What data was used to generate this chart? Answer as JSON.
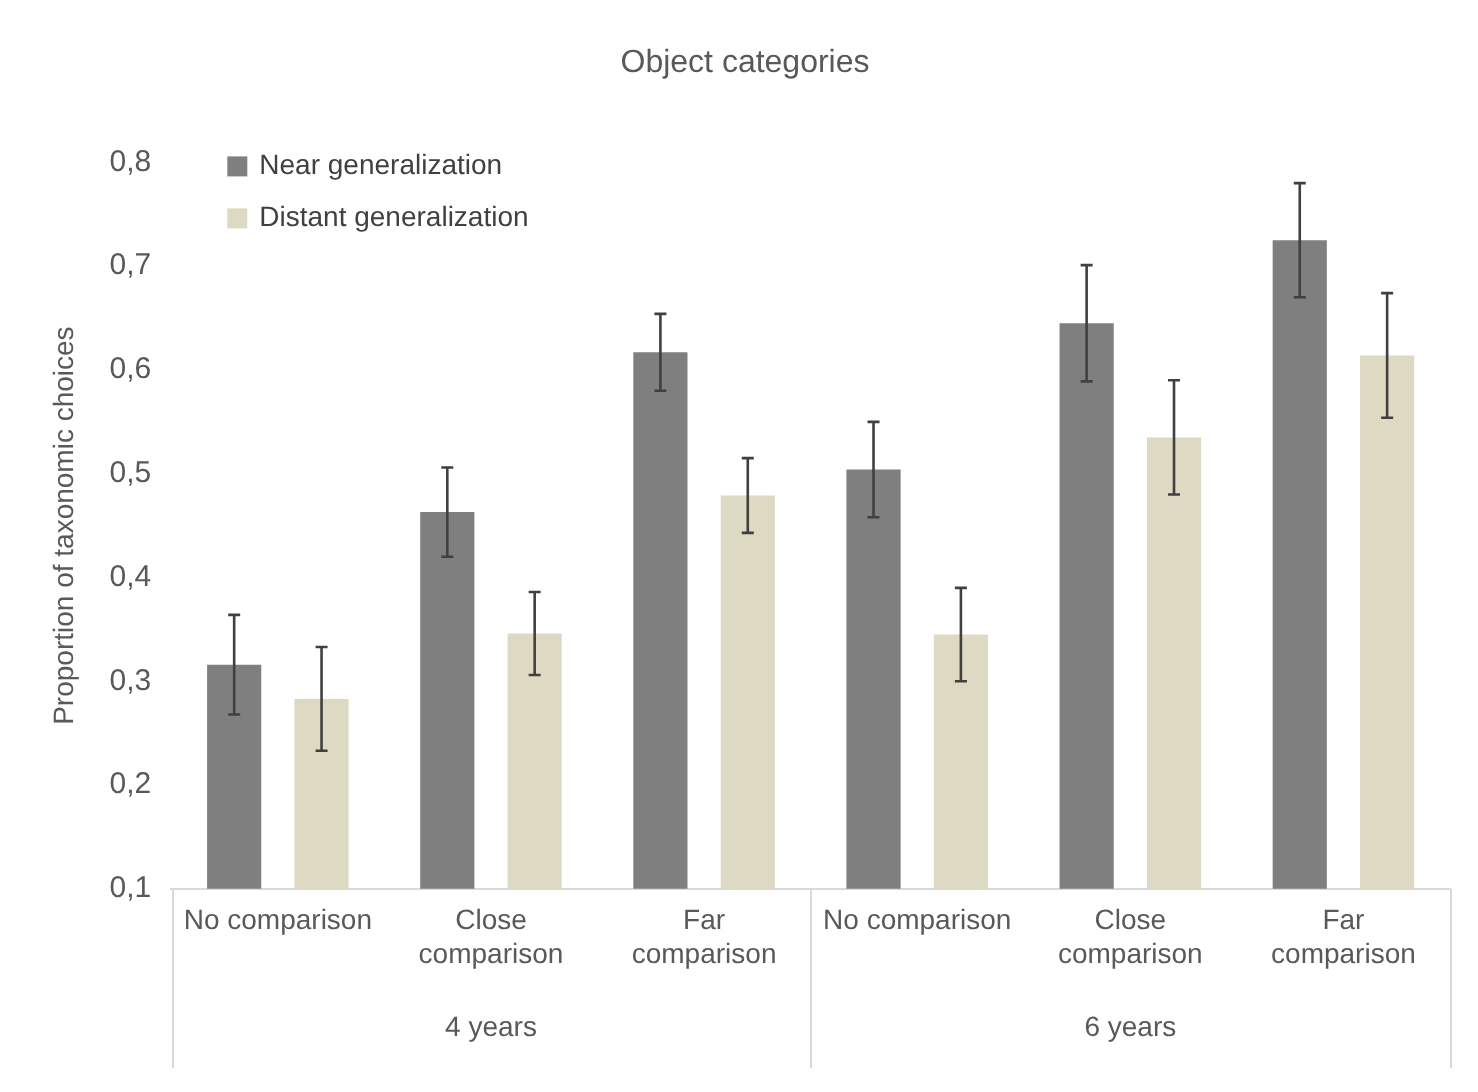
{
  "chart_data": {
    "type": "bar",
    "title": "Object categories",
    "ylabel": "Proportion of taxonomic choices",
    "categories": [
      "No comparison",
      "Close comparison",
      "Far comparison",
      "No comparison",
      "Close comparison",
      "Far comparison"
    ],
    "series": [
      {
        "name": "Near generalization",
        "color": "#7f7f7f",
        "values": [
          0.316,
          0.463,
          0.617,
          0.504,
          0.645,
          0.725
        ],
        "errors": [
          0.048,
          0.043,
          0.037,
          0.046,
          0.056,
          0.055
        ]
      },
      {
        "name": "Distant generalization",
        "color": "#ddd9c3",
        "values": [
          0.283,
          0.346,
          0.479,
          0.345,
          0.535,
          0.614
        ],
        "errors": [
          0.05,
          0.04,
          0.036,
          0.045,
          0.055,
          0.06
        ]
      }
    ],
    "ylim": [
      0.1,
      0.8
    ],
    "yticks": [
      {
        "value": 0.1,
        "label": "0,1"
      },
      {
        "value": 0.2,
        "label": "0,2"
      },
      {
        "value": 0.3,
        "label": "0,3"
      },
      {
        "value": 0.4,
        "label": "0,4"
      },
      {
        "value": 0.5,
        "label": "0,5"
      },
      {
        "value": 0.6,
        "label": "0,6"
      },
      {
        "value": 0.7,
        "label": "0,7"
      },
      {
        "value": 0.8,
        "label": "0,8"
      }
    ],
    "annotations": [
      "4 years",
      "6 years"
    ],
    "grid": false,
    "legend": "top left"
  }
}
